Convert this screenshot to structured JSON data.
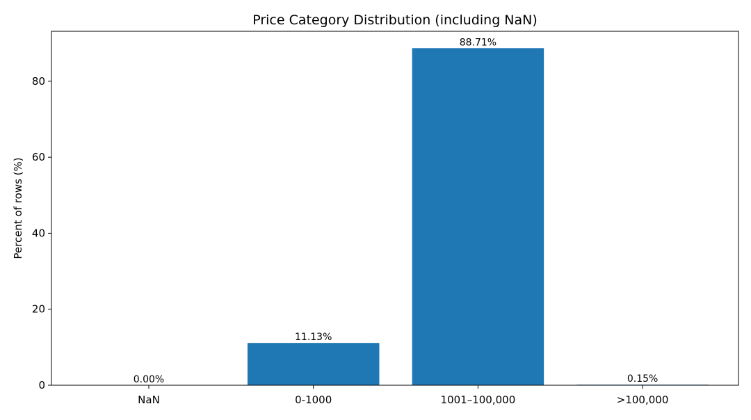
{
  "chart_data": {
    "type": "bar",
    "title": "Price Category Distribution (including NaN)",
    "xlabel": "",
    "ylabel": "Percent of rows (%)",
    "categories": [
      "NaN",
      "0-1000",
      "1001–100,000",
      ">100,000"
    ],
    "values": [
      0.0,
      11.13,
      88.71,
      0.15
    ],
    "value_labels": [
      "0.00%",
      "11.13%",
      "88.71%",
      "0.15%"
    ],
    "yticks": [
      0,
      20,
      40,
      60,
      80
    ],
    "ytick_labels": [
      "0",
      "20",
      "40",
      "60",
      "80"
    ],
    "ylim": [
      0,
      93.15
    ],
    "grid": false,
    "legend": "none",
    "bar_color": "#1f77b4"
  }
}
